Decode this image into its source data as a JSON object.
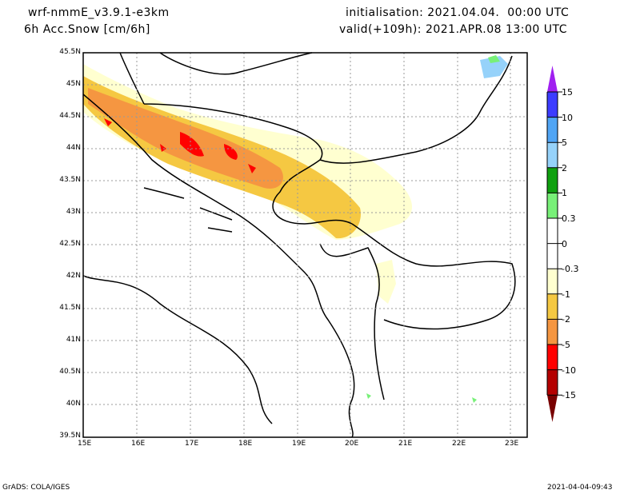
{
  "header": {
    "model": "wrf-nmmE_v3.9.1-e3km",
    "field": "6h Acc.Snow [cm/6h]",
    "init": "initialisation: 2021.04.04.  00:00 UTC",
    "valid": "valid(+109h): 2021.APR.08 13:00 UTC"
  },
  "footer": {
    "credit": "GrADS: COLA/IGES",
    "timestamp": "2021-04-04-09:43"
  },
  "axes": {
    "lon": [
      "15E",
      "16E",
      "17E",
      "18E",
      "19E",
      "20E",
      "21E",
      "22E",
      "23E"
    ],
    "lat": [
      "45.5N",
      "45N",
      "44.5N",
      "44N",
      "43.5N",
      "43N",
      "42.5N",
      "42N",
      "41.5N",
      "41N",
      "40.5N",
      "40N",
      "39.5N"
    ]
  },
  "colorbar": {
    "labels": [
      "15",
      "10",
      "5",
      "2",
      "1",
      "0.3",
      "0",
      "-0.3",
      "-1",
      "-2",
      "-5",
      "-10",
      "-15"
    ],
    "colors": [
      "#a020f0",
      "#3c3cff",
      "#50a5f5",
      "#96d2fa",
      "#0fa00f",
      "#78f078",
      "#ffffff",
      "#ffffff",
      "#ffffd0",
      "#f5c842",
      "#f59641",
      "#ff0000",
      "#b40000",
      "#780000"
    ]
  }
}
